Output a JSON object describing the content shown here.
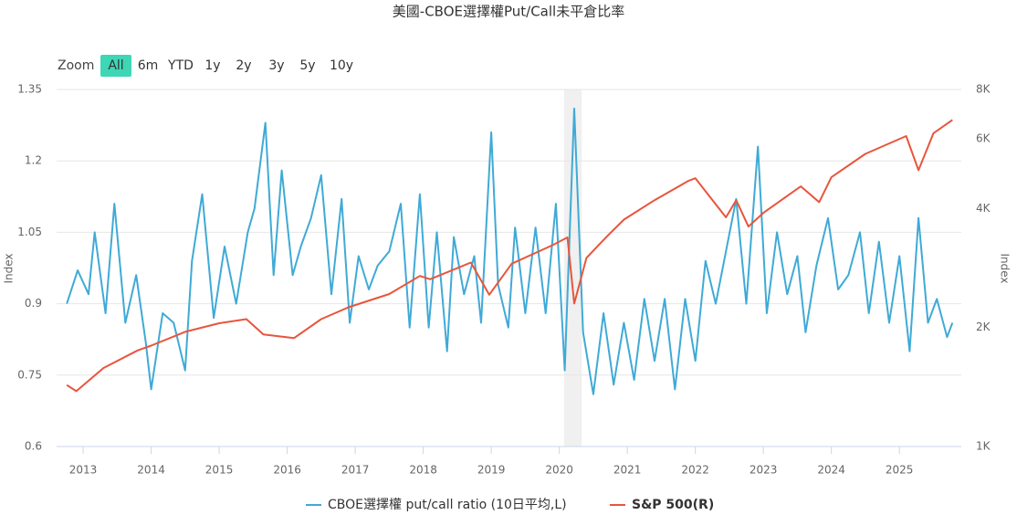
{
  "chart_data": {
    "type": "line",
    "title": "美國-CBOE選擇權Put/Call未平倉比率",
    "range_selector": {
      "label": "Zoom",
      "buttons": [
        "All",
        "6m",
        "YTD",
        "1y",
        "2y",
        "3y",
        "5y",
        "10y"
      ],
      "selected": 0
    },
    "ylabel": "Index",
    "y2label": "Index",
    "xlim": [
      2012.61,
      2025.91
    ],
    "xticks": [
      2013,
      2014,
      2015,
      2016,
      2017,
      2018,
      2019,
      2020,
      2021,
      2022,
      2023,
      2024,
      2025
    ],
    "ylim": [
      0.6,
      1.35
    ],
    "yticks": [
      0.6,
      0.75,
      0.9,
      1.05,
      1.2,
      1.35
    ],
    "y2lim": [
      1000,
      8000
    ],
    "y2scale": "log",
    "y2ticks": [
      {
        "value": 1000,
        "label": "1K"
      },
      {
        "value": 2000,
        "label": "2K"
      },
      {
        "value": 4000,
        "label": "4K"
      },
      {
        "value": 6000,
        "label": "6K"
      },
      {
        "value": 8000,
        "label": "8K"
      }
    ],
    "grid": true,
    "plot_band": {
      "from": 2020.07,
      "to": 2020.33,
      "color": "#f0f0f0"
    },
    "series": [
      {
        "name": "CBOE選擇權 put/call ratio (10日平均,L)",
        "color": "#3faad6",
        "axis": "y",
        "x": [
          2012.76,
          2012.92,
          2013.08,
          2013.17,
          2013.33,
          2013.46,
          2013.62,
          2013.78,
          2013.92,
          2014.0,
          2014.17,
          2014.33,
          2014.5,
          2014.6,
          2014.75,
          2014.92,
          2015.08,
          2015.25,
          2015.42,
          2015.52,
          2015.68,
          2015.8,
          2015.92,
          2016.08,
          2016.2,
          2016.35,
          2016.5,
          2016.65,
          2016.8,
          2016.92,
          2017.05,
          2017.2,
          2017.33,
          2017.5,
          2017.67,
          2017.8,
          2017.95,
          2018.08,
          2018.2,
          2018.35,
          2018.45,
          2018.6,
          2018.75,
          2018.85,
          2019.0,
          2019.1,
          2019.25,
          2019.35,
          2019.5,
          2019.65,
          2019.8,
          2019.95,
          2020.08,
          2020.22,
          2020.35,
          2020.5,
          2020.65,
          2020.8,
          2020.95,
          2021.1,
          2021.25,
          2021.4,
          2021.55,
          2021.7,
          2021.85,
          2022.0,
          2022.15,
          2022.3,
          2022.45,
          2022.6,
          2022.75,
          2022.92,
          2023.05,
          2023.2,
          2023.35,
          2023.5,
          2023.62,
          2023.78,
          2023.95,
          2024.1,
          2024.25,
          2024.42,
          2024.55,
          2024.7,
          2024.85,
          2025.0,
          2025.15,
          2025.28,
          2025.42,
          2025.55,
          2025.7,
          2025.78
        ],
        "values": [
          0.9,
          0.97,
          0.92,
          1.05,
          0.88,
          1.11,
          0.86,
          0.96,
          0.82,
          0.72,
          0.88,
          0.86,
          0.76,
          0.99,
          1.13,
          0.87,
          1.02,
          0.9,
          1.05,
          1.1,
          1.28,
          0.96,
          1.18,
          0.96,
          1.02,
          1.08,
          1.17,
          0.92,
          1.12,
          0.86,
          1.0,
          0.93,
          0.98,
          1.01,
          1.11,
          0.85,
          1.13,
          0.85,
          1.05,
          0.8,
          1.04,
          0.92,
          1.0,
          0.86,
          1.26,
          0.94,
          0.85,
          1.06,
          0.88,
          1.06,
          0.88,
          1.11,
          0.76,
          1.31,
          0.84,
          0.71,
          0.88,
          0.73,
          0.86,
          0.74,
          0.91,
          0.78,
          0.91,
          0.72,
          0.91,
          0.78,
          0.99,
          0.9,
          1.01,
          1.12,
          0.9,
          1.23,
          0.88,
          1.05,
          0.92,
          1.0,
          0.84,
          0.98,
          1.08,
          0.93,
          0.96,
          1.05,
          0.88,
          1.03,
          0.86,
          1.0,
          0.8,
          1.08,
          0.86,
          0.91,
          0.83,
          0.86
        ]
      },
      {
        "name": "S&P 500(R)",
        "color": "#e8553c",
        "axis": "y2",
        "x": [
          2012.76,
          2012.9,
          2013.3,
          2013.8,
          2014.0,
          2014.5,
          2015.0,
          2015.4,
          2015.65,
          2016.1,
          2016.5,
          2016.9,
          2017.5,
          2017.95,
          2018.1,
          2018.7,
          2018.97,
          2019.3,
          2019.9,
          2020.12,
          2020.22,
          2020.4,
          2020.7,
          2020.95,
          2021.4,
          2021.9,
          2022.0,
          2022.45,
          2022.6,
          2022.78,
          2023.0,
          2023.55,
          2023.82,
          2024.0,
          2024.5,
          2025.1,
          2025.28,
          2025.5,
          2025.78
        ],
        "values": [
          1430,
          1380,
          1580,
          1750,
          1800,
          1950,
          2050,
          2100,
          1920,
          1880,
          2100,
          2250,
          2430,
          2700,
          2650,
          2920,
          2420,
          2900,
          3230,
          3380,
          2300,
          3000,
          3400,
          3750,
          4200,
          4700,
          4770,
          3800,
          4200,
          3600,
          3900,
          4550,
          4150,
          4800,
          5500,
          6100,
          5000,
          6200,
          6700
        ]
      }
    ]
  }
}
